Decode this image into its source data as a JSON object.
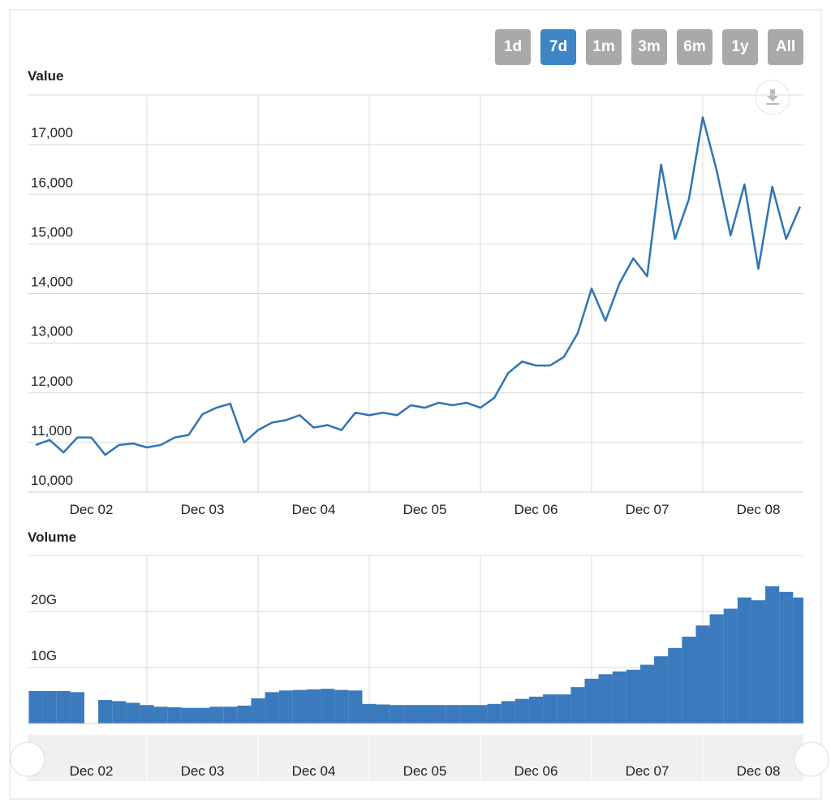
{
  "range_buttons": {
    "options": [
      "1d",
      "7d",
      "1m",
      "3m",
      "6m",
      "1y",
      "All"
    ],
    "selected": "7d"
  },
  "chart_data": [
    {
      "type": "line",
      "title": "Value",
      "color": "#2f74b5",
      "categories": [
        null,
        null,
        null,
        null,
        "Dec 02",
        null,
        null,
        null,
        null,
        null,
        null,
        null,
        "Dec 03",
        null,
        null,
        null,
        null,
        null,
        null,
        null,
        "Dec 04",
        null,
        null,
        null,
        null,
        null,
        null,
        null,
        "Dec 05",
        null,
        null,
        null,
        null,
        null,
        null,
        null,
        "Dec 06",
        null,
        null,
        null,
        null,
        null,
        null,
        null,
        "Dec 07",
        null,
        null,
        null,
        null,
        null,
        null,
        null,
        "Dec 08",
        null,
        null,
        null
      ],
      "values": [
        10950,
        11050,
        10800,
        11100,
        11100,
        10750,
        10950,
        10980,
        10900,
        10950,
        11100,
        11150,
        11570,
        11700,
        11780,
        11000,
        11250,
        11400,
        11450,
        11550,
        11300,
        11350,
        11250,
        11600,
        11550,
        11600,
        11550,
        11750,
        11700,
        11800,
        11750,
        11800,
        11700,
        11900,
        12400,
        12630,
        12550,
        12550,
        12720,
        13200,
        14100,
        13450,
        14200,
        14710,
        14350,
        16600,
        15100,
        15900,
        17550,
        16480,
        15170,
        16200,
        14500,
        16150,
        15100,
        15750
      ],
      "ylim": [
        10000,
        18000
      ],
      "yticks": [
        {
          "value": 10000,
          "label": "10,000"
        },
        {
          "value": 11000,
          "label": "11,000"
        },
        {
          "value": 12000,
          "label": "12,000"
        },
        {
          "value": 13000,
          "label": "13,000"
        },
        {
          "value": 14000,
          "label": "14,000"
        },
        {
          "value": 15000,
          "label": "15,000"
        },
        {
          "value": 16000,
          "label": "16,000"
        },
        {
          "value": 17000,
          "label": "17,000"
        }
      ],
      "grid": true
    },
    {
      "type": "bar",
      "title": "Volume",
      "color": "#3a7abd",
      "categories": [
        null,
        null,
        null,
        null,
        "Dec 02",
        null,
        null,
        null,
        null,
        null,
        null,
        null,
        "Dec 03",
        null,
        null,
        null,
        null,
        null,
        null,
        null,
        "Dec 04",
        null,
        null,
        null,
        null,
        null,
        null,
        null,
        "Dec 05",
        null,
        null,
        null,
        null,
        null,
        null,
        null,
        "Dec 06",
        null,
        null,
        null,
        null,
        null,
        null,
        null,
        "Dec 07",
        null,
        null,
        null,
        null,
        null,
        null,
        null,
        "Dec 08",
        null,
        null,
        null
      ],
      "values": [
        5.8,
        5.8,
        5.8,
        5.6,
        null,
        4.2,
        4.0,
        3.7,
        3.3,
        3.0,
        2.9,
        2.8,
        2.8,
        3.0,
        3.0,
        3.2,
        4.5,
        5.6,
        5.9,
        6.0,
        6.1,
        6.2,
        6.0,
        5.9,
        3.5,
        3.4,
        3.3,
        3.3,
        3.3,
        3.3,
        3.3,
        3.3,
        3.3,
        3.5,
        4.0,
        4.4,
        4.8,
        5.2,
        5.2,
        6.5,
        8.0,
        8.8,
        9.3,
        9.6,
        10.5,
        12.0,
        13.5,
        15.5,
        17.5,
        19.5,
        20.5,
        22.5,
        22.0,
        24.5,
        23.5,
        22.5
      ],
      "ylim": [
        0,
        30
      ],
      "yticks": [
        0,
        {
          "value": 10,
          "label": "10G"
        },
        {
          "value": 20,
          "label": "20G"
        }
      ],
      "grid": true
    }
  ]
}
